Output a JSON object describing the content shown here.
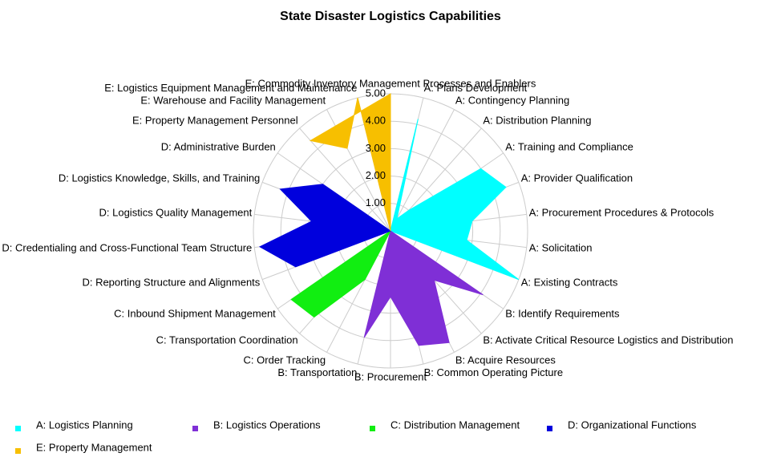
{
  "chart_data": {
    "type": "radar",
    "title": "State Disaster Logistics Capabilities",
    "categories": [
      "E: Commodity Inventory Management Processes and Enablers",
      "A: Plans Development",
      "A: Contingency Planning",
      "A: Distribution Planning",
      "A: Training and Compliance",
      "A: Provider Qualification",
      "A: Procurement Procedures & Protocols",
      "A: Solicitation",
      "A: Existing Contracts",
      "B: Identify Requirements",
      "B: Activate Critical Resource Logistics and Distribution",
      "B: Acquire Resources",
      "B: Common Operating Picture",
      "B: Procurement",
      "B: Transportation",
      "C: Order Tracking",
      "C: Transportation Coordination",
      "C: Inbound Shipment Management",
      "D: Reporting Structure and Alignments",
      "D: Credentialing and Cross-Functional Team Structure",
      "D: Logistics Quality Management",
      "D: Logistics Knowledge, Skills, and Training",
      "D: Administrative Burden",
      "E: Property Management Personnel",
      "E: Warehouse and Facility Management",
      "E: Logistics Equipment Management and Maintenance"
    ],
    "series": [
      {
        "name": "A: Logistics Planning",
        "color": "#00ffff",
        "values": [
          null,
          4.2,
          0.5,
          1.0,
          4.0,
          4.5,
          3.0,
          2.8,
          5.0,
          null,
          null,
          null,
          null,
          null,
          null,
          null,
          null,
          null,
          null,
          null,
          null,
          null,
          null,
          null,
          null,
          null
        ]
      },
      {
        "name": "B: Logistics Operations",
        "color": "#7f2fd6",
        "values": [
          null,
          null,
          null,
          null,
          null,
          null,
          null,
          null,
          null,
          4.1,
          2.4,
          4.6,
          4.3,
          2.4,
          4.0,
          null,
          null,
          null,
          null,
          null,
          null,
          null,
          null,
          null,
          null,
          null
        ]
      },
      {
        "name": "C: Distribution Management",
        "color": "#11ee11",
        "values": [
          null,
          null,
          null,
          null,
          null,
          null,
          null,
          null,
          null,
          null,
          null,
          null,
          null,
          null,
          null,
          2.0,
          4.2,
          4.4,
          null,
          null,
          null,
          null,
          null,
          null,
          null,
          null
        ]
      },
      {
        "name": "D: Organizational Functions",
        "color": "#0000dd",
        "values": [
          null,
          null,
          null,
          null,
          null,
          null,
          null,
          null,
          null,
          null,
          null,
          null,
          null,
          null,
          null,
          null,
          null,
          null,
          3.7,
          4.8,
          2.9,
          4.3,
          3.0,
          null,
          null,
          null
        ]
      },
      {
        "name": "E: Property Management",
        "color": "#f7bf00",
        "values": [
          5.0,
          null,
          null,
          null,
          null,
          null,
          null,
          null,
          null,
          null,
          null,
          null,
          null,
          null,
          null,
          null,
          null,
          null,
          null,
          null,
          null,
          null,
          null,
          4.4,
          3.4,
          5.0
        ]
      }
    ],
    "ylim": [
      0,
      5
    ],
    "yticks": [
      {
        "value": 1,
        "label": "1.00"
      },
      {
        "value": 2,
        "label": "2.00"
      },
      {
        "value": 3,
        "label": "3.00"
      },
      {
        "value": 4,
        "label": "4.00"
      },
      {
        "value": 5,
        "label": "5.00"
      }
    ],
    "grid": true,
    "legend": "bottom"
  }
}
